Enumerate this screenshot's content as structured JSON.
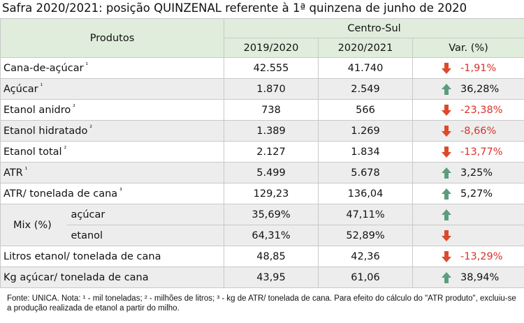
{
  "title": "Safra 2020/2021: posição QUINZENAL referente à 1ª quinzena de junho de 2020",
  "header": {
    "products": "Produtos",
    "region": "Centro-Sul",
    "columns": [
      "2019/2020",
      "2020/2021",
      "Var. (%)"
    ]
  },
  "rows": [
    {
      "product": "Cana-de-açúcar",
      "note": "¹",
      "v2019": "42.555",
      "v2020": "41.740",
      "var": "-1,91%",
      "trend": "down"
    },
    {
      "product": "Açúcar",
      "note": "¹",
      "v2019": "1.870",
      "v2020": "2.549",
      "var": "36,28%",
      "trend": "up"
    },
    {
      "product": "Etanol anidro",
      "note": "²",
      "v2019": "738",
      "v2020": "566",
      "var": "-23,38%",
      "trend": "down"
    },
    {
      "product": "Etanol hidratado",
      "note": "²",
      "v2019": "1.389",
      "v2020": "1.269",
      "var": "-8,66%",
      "trend": "down"
    },
    {
      "product": "Etanol total",
      "note": "²",
      "v2019": "2.127",
      "v2020": "1.834",
      "var": "-13,77%",
      "trend": "down"
    },
    {
      "product": "ATR",
      "note": "¹",
      "v2019": "5.499",
      "v2020": "5.678",
      "var": "3,25%",
      "trend": "up"
    },
    {
      "product": "ATR/ tonelada de cana",
      "note": "³",
      "v2019": "129,23",
      "v2020": "136,04",
      "var": "5,27%",
      "trend": "up"
    },
    {
      "product": "Mix (%)",
      "items": [
        {
          "product": "açúcar",
          "v2019": "35,69%",
          "v2020": "47,11%",
          "trend": "up"
        },
        {
          "product": "etanol",
          "v2019": "64,31%",
          "v2020": "52,89%",
          "trend": "down"
        }
      ]
    },
    {
      "product": "Litros etanol/ tonelada de cana",
      "v2019": "48,85",
      "v2020": "42,36",
      "var": "-13,29%",
      "trend": "down"
    },
    {
      "product": "Kg açúcar/ tonelada de cana",
      "v2019": "43,95",
      "v2020": "61,06",
      "var": "38,94%",
      "trend": "up"
    }
  ],
  "footnote": "Fonte: UNICA. Nota: ¹ - mil toneladas; ² - milhões de litros; ³ - kg de ATR/ tonelada de cana. Para efeito do cálculo do \"ATR produto\", excluiu-se a produção realizada de etanol a partir do milho."
}
